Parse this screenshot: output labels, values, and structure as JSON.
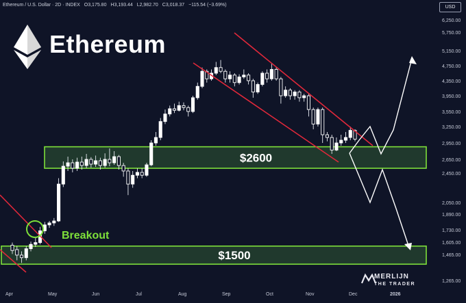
{
  "header": {
    "symbol": "Ethereum / U.S. Dollar · 2D · INDEX",
    "open": "O3,175.80",
    "high": "H3,193.44",
    "low": "L2,982.70",
    "close": "C3,018.37",
    "change": "−115.54 (−3.69%)"
  },
  "currency": "USD",
  "brand_title": "Ethereum",
  "logo": {
    "line1": "MERLIJN",
    "line2": "THE TRADER"
  },
  "colors": {
    "background": "#0f1427",
    "bull": "#ffffff",
    "bear": "#ffffff",
    "trendline": "#e0283a",
    "zone_border": "#7ee03a",
    "zone_fill": "#23402f",
    "breakout": "#7ee03a",
    "projection": "#ffffff"
  },
  "chart_data": {
    "type": "candlestick",
    "price_axis_labels": [
      "6,250.00",
      "5,750.00",
      "5,150.00",
      "4,750.00",
      "4,350.00",
      "3,950.00",
      "3,550.00",
      "3,250.00",
      "2,950.00",
      "2,650.00",
      "2,450.00",
      "2,050.00",
      "1,890.00",
      "1,730.00",
      "1,605.00",
      "1,465.00",
      "1,265.00"
    ],
    "price_axis_values": [
      6250,
      5750,
      5150,
      4750,
      4350,
      3950,
      3550,
      3250,
      2950,
      2650,
      2450,
      2050,
      1890,
      1730,
      1605,
      1465,
      1265
    ],
    "time_axis_labels": [
      "Apr",
      "May",
      "Jun",
      "Jul",
      "Aug",
      "Sep",
      "Oct",
      "Nov",
      "Dec",
      "2026"
    ],
    "zones": [
      {
        "label": "$2600",
        "low": 2520,
        "high": 2880
      },
      {
        "label": "$1500",
        "low": 1390,
        "high": 1560
      }
    ],
    "annotations": [
      {
        "text": "Breakout",
        "color": "#7ee03a"
      }
    ],
    "candles": [
      [
        1570,
        1510,
        1600,
        1470
      ],
      [
        1520,
        1460,
        1560,
        1420
      ],
      [
        1460,
        1440,
        1500,
        1400
      ],
      [
        1440,
        1530,
        1560,
        1420
      ],
      [
        1530,
        1580,
        1610,
        1500
      ],
      [
        1580,
        1600,
        1650,
        1550
      ],
      [
        1600,
        1720,
        1760,
        1580
      ],
      [
        1720,
        1780,
        1810,
        1690
      ],
      [
        1780,
        1800,
        1820,
        1750
      ],
      [
        1800,
        1820,
        1850,
        1770
      ],
      [
        1820,
        2300,
        2380,
        1810
      ],
      [
        2300,
        2550,
        2620,
        2260
      ],
      [
        2550,
        2600,
        2700,
        2480
      ],
      [
        2600,
        2520,
        2650,
        2460
      ],
      [
        2520,
        2610,
        2680,
        2480
      ],
      [
        2610,
        2560,
        2700,
        2500
      ],
      [
        2560,
        2650,
        2750,
        2520
      ],
      [
        2650,
        2580,
        2690,
        2530
      ],
      [
        2580,
        2630,
        2720,
        2540
      ],
      [
        2630,
        2560,
        2680,
        2500
      ],
      [
        2560,
        2650,
        2760,
        2530
      ],
      [
        2650,
        2600,
        2850,
        2550
      ],
      [
        2600,
        2700,
        2800,
        2570
      ],
      [
        2700,
        2560,
        2730,
        2500
      ],
      [
        2560,
        2480,
        2600,
        2400
      ],
      [
        2480,
        2300,
        2520,
        2150
      ],
      [
        2300,
        2420,
        2480,
        2250
      ],
      [
        2420,
        2460,
        2520,
        2380
      ],
      [
        2460,
        2420,
        2520,
        2380
      ],
      [
        2420,
        2570,
        2600,
        2400
      ],
      [
        2570,
        2950,
        3000,
        2550
      ],
      [
        2950,
        3050,
        3150,
        2900
      ],
      [
        3050,
        3350,
        3420,
        3000
      ],
      [
        3350,
        3500,
        3600,
        3300
      ],
      [
        3500,
        3620,
        3700,
        3450
      ],
      [
        3620,
        3580,
        3750,
        3520
      ],
      [
        3580,
        3700,
        3800,
        3550
      ],
      [
        3700,
        3650,
        3780,
        3580
      ],
      [
        3650,
        3550,
        3700,
        3450
      ],
      [
        3550,
        3900,
        3950,
        3520
      ],
      [
        3900,
        4200,
        4300,
        3850
      ],
      [
        4200,
        4600,
        4700,
        4150
      ],
      [
        4600,
        4400,
        4650,
        4300
      ],
      [
        4400,
        4550,
        4650,
        4350
      ],
      [
        4550,
        4700,
        4850,
        4500
      ],
      [
        4700,
        4600,
        4900,
        4550
      ],
      [
        4600,
        4400,
        4650,
        4300
      ],
      [
        4400,
        4500,
        4600,
        4300
      ],
      [
        4500,
        4300,
        4550,
        4200
      ],
      [
        4300,
        4450,
        4520,
        4250
      ],
      [
        4450,
        4500,
        4650,
        4400
      ],
      [
        4500,
        4350,
        4550,
        4250
      ],
      [
        4350,
        4050,
        4400,
        3900
      ],
      [
        4050,
        4250,
        4300,
        4000
      ],
      [
        4250,
        4550,
        4600,
        4200
      ],
      [
        4550,
        4400,
        4650,
        4300
      ],
      [
        4400,
        4650,
        4800,
        4350
      ],
      [
        4650,
        4400,
        4700,
        4350
      ],
      [
        4400,
        3950,
        4450,
        3750
      ],
      [
        3950,
        4100,
        4200,
        3900
      ],
      [
        4100,
        3950,
        4150,
        3850
      ],
      [
        3950,
        4050,
        4100,
        3850
      ],
      [
        4050,
        3900,
        4100,
        3800
      ],
      [
        3900,
        3950,
        4000,
        3800
      ],
      [
        3950,
        3600,
        4000,
        3450
      ],
      [
        3600,
        3300,
        3650,
        3200
      ],
      [
        3300,
        3600,
        3650,
        3250
      ],
      [
        3600,
        3100,
        3650,
        2950
      ],
      [
        3100,
        3050,
        3150,
        2980
      ],
      [
        3050,
        2820,
        3100,
        2750
      ],
      [
        2820,
        2950,
        3050,
        2800
      ],
      [
        2950,
        3000,
        3100,
        2900
      ],
      [
        3000,
        3050,
        3150,
        2950
      ],
      [
        3050,
        3180,
        3250,
        3000
      ],
      [
        3180,
        3020,
        3200,
        2980
      ]
    ]
  }
}
